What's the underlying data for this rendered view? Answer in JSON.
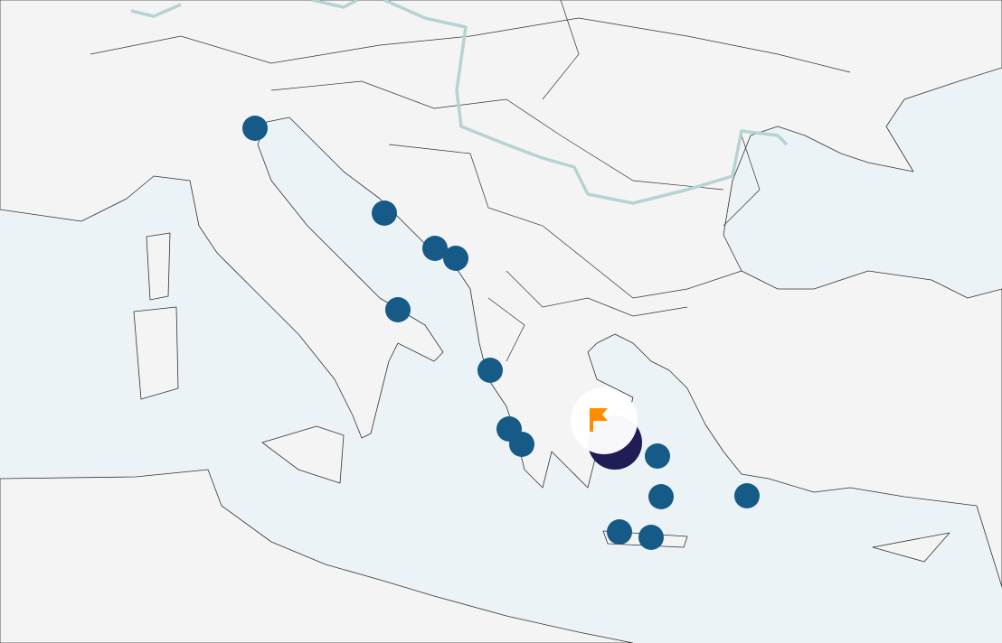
{
  "map": {
    "colors": {
      "sea": "#ecf3f7",
      "land": "#f4f4f4",
      "border": "#333333",
      "river": "#b6d3d3",
      "marker": "#165a88",
      "selected_marker": "#201c56",
      "flag": "#ff8c00",
      "flag_badge": "#ffffff"
    },
    "marker_icon": "circle-marker",
    "selected_icon": "flag-icon",
    "marker_count": 13
  }
}
